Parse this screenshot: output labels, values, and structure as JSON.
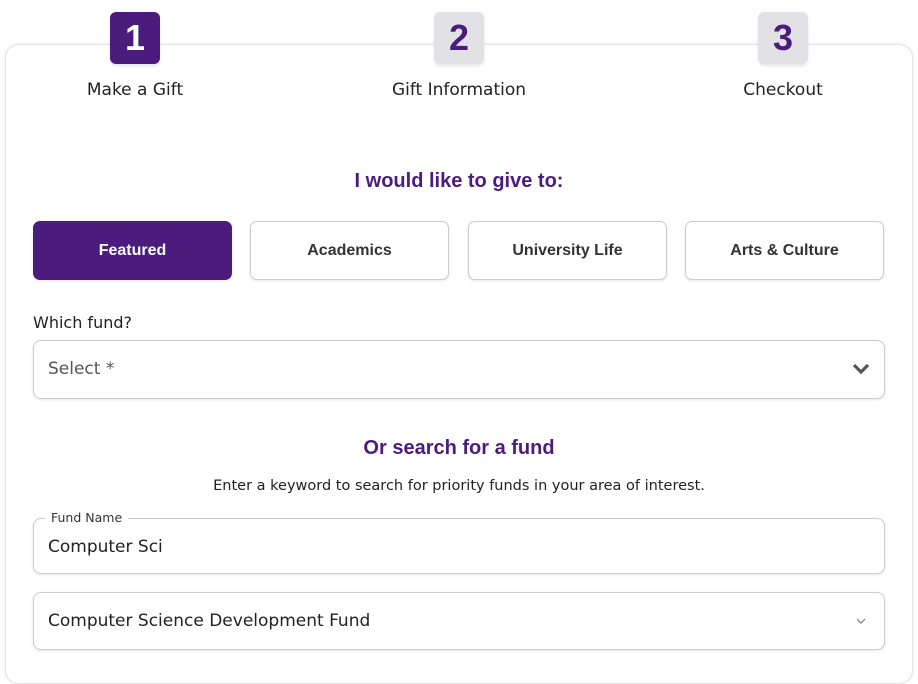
{
  "steps": [
    {
      "number": "1",
      "label": "Make a Gift",
      "active": true
    },
    {
      "number": "2",
      "label": "Gift Information",
      "active": false
    },
    {
      "number": "3",
      "label": "Checkout",
      "active": false
    }
  ],
  "give_heading": "I would like to give to:",
  "tabs": [
    {
      "label": "Featured",
      "active": true
    },
    {
      "label": "Academics"
    },
    {
      "label": "University Life"
    },
    {
      "label": "Arts & Culture"
    }
  ],
  "fund_select": {
    "label": "Which fund?",
    "value": "Select *",
    "icon": "chevron-down-icon"
  },
  "search": {
    "heading": "Or search for a fund",
    "description": "Enter a keyword to search for priority funds in your area of interest.",
    "field_label": "Fund Name",
    "field_value": "Computer Sci"
  },
  "result_select": {
    "value": "Computer Science Development Fund",
    "icon": "chevron-down-icon"
  },
  "colors": {
    "accent": "#4b1c7d",
    "step_inactive": "#e2e2e6"
  }
}
